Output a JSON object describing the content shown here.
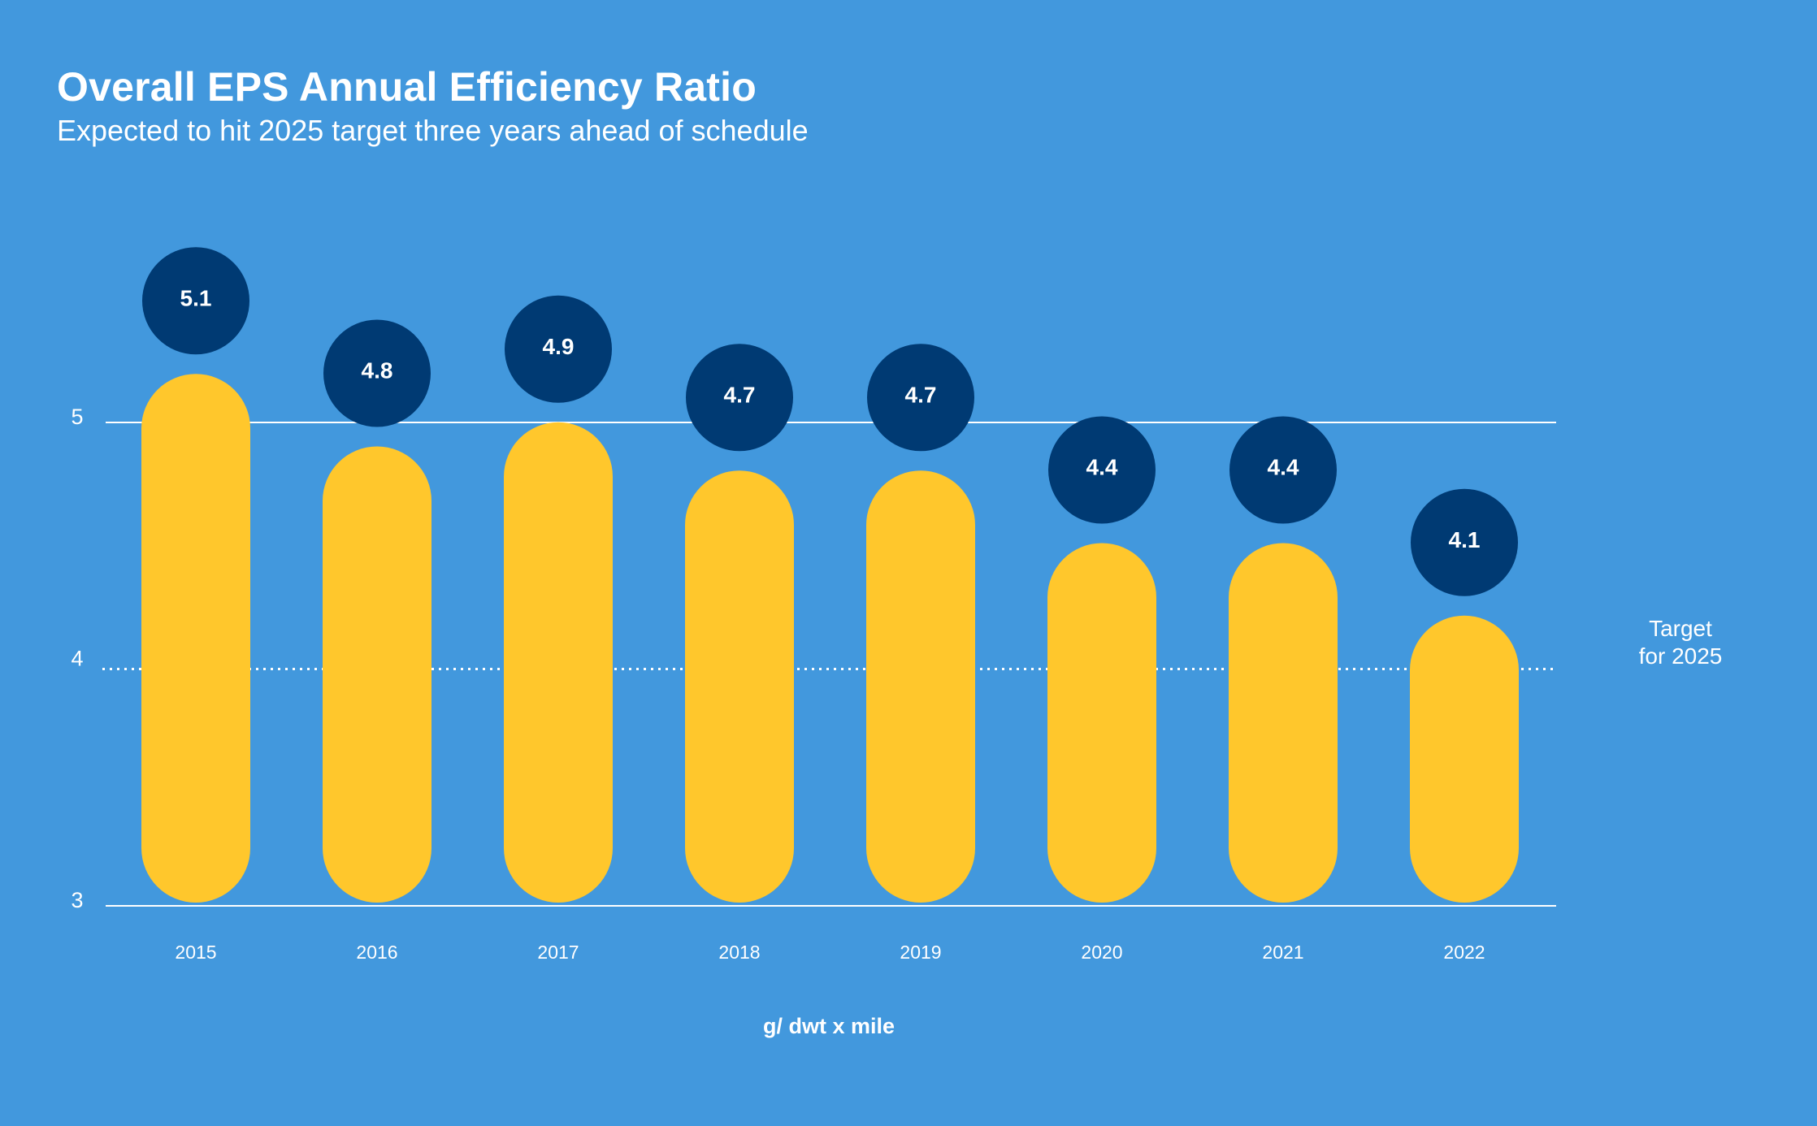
{
  "chart_data": {
    "type": "bar",
    "title": "Overall EPS Annual Efficiency Ratio",
    "subtitle": "Expected to hit 2025 target three years ahead of schedule",
    "categories": [
      "2015",
      "2016",
      "2017",
      "2018",
      "2019",
      "2020",
      "2021",
      "2022"
    ],
    "values": [
      5.1,
      4.8,
      4.9,
      4.7,
      4.7,
      4.4,
      4.4,
      4.1
    ],
    "value_labels": [
      "5.1",
      "4.8",
      "4.9",
      "4.7",
      "4.7",
      "4.4",
      "4.4",
      "4.1"
    ],
    "ylim": [
      3,
      5
    ],
    "yticks": [
      3,
      4,
      5
    ],
    "ytick_labels": [
      "3",
      "4",
      "5"
    ],
    "xlabel": "g/ dwt x mile",
    "grid": true,
    "target": {
      "value": 4,
      "label_line1": "Target",
      "label_line2": "for 2025",
      "style": "dotted"
    },
    "colors": {
      "background": "#4298dd",
      "bar": "#ffc72c",
      "badge": "#003a73",
      "text": "#ffffff",
      "grid": "#ffffff"
    }
  }
}
